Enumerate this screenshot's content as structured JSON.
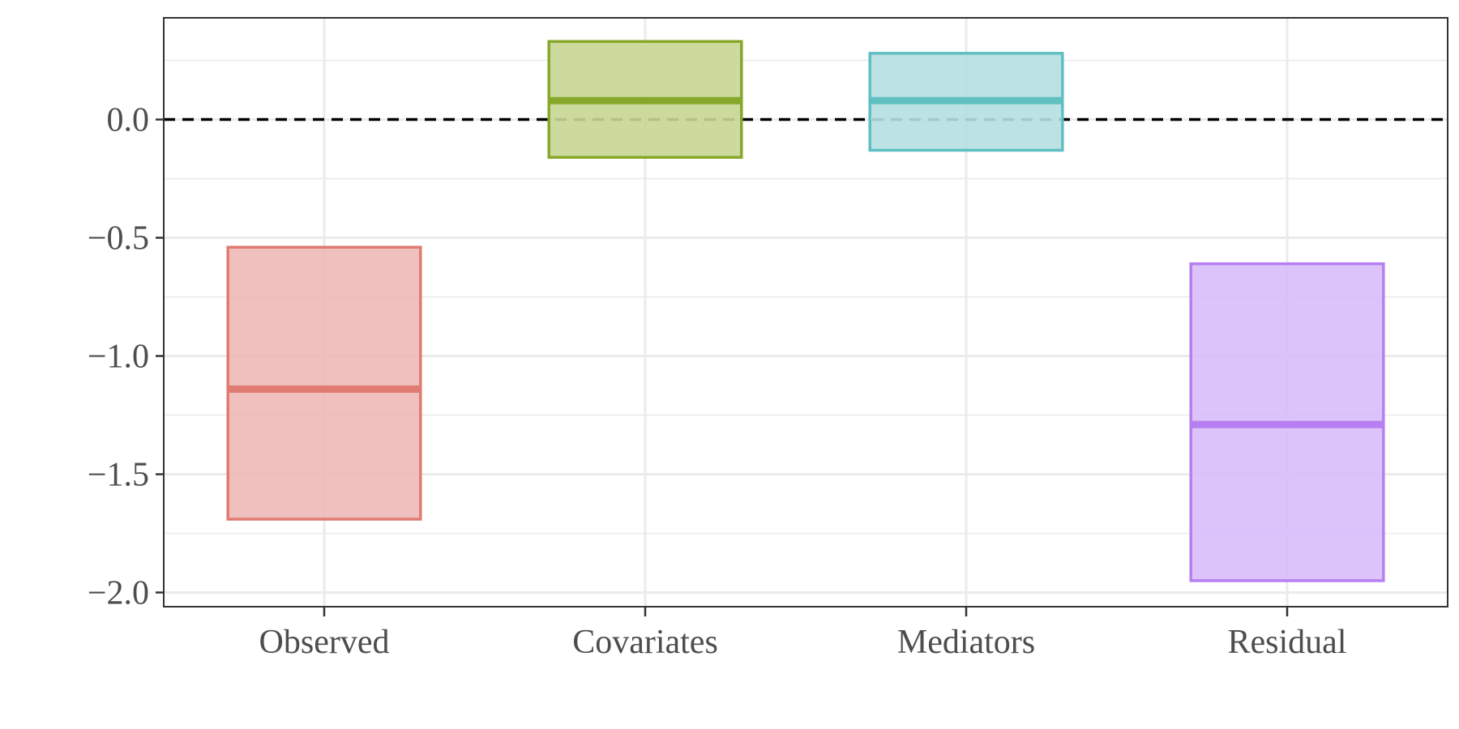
{
  "chart_data": {
    "type": "crossbar",
    "title": "",
    "xlabel": "",
    "ylabel": "",
    "ylim": [
      -2.06,
      0.43
    ],
    "y_ticks": [
      0.0,
      -0.5,
      -1.0,
      -1.5,
      -2.0
    ],
    "y_tick_labels": [
      "0.0",
      "−0.5",
      "−1.0",
      "−1.5",
      "−2.0"
    ],
    "reference_line": {
      "y": 0,
      "style": "dashed",
      "color": "#000000"
    },
    "grid": true,
    "legend": "none",
    "categories": [
      "Observed",
      "Covariates",
      "Mediators",
      "Residual"
    ],
    "bars": [
      {
        "category": "Observed",
        "estimate": -1.14,
        "lower": -1.69,
        "upper": -0.54,
        "color": "#e07b73",
        "fill": "#edb9b6"
      },
      {
        "category": "Covariates",
        "estimate": 0.08,
        "lower": -0.16,
        "upper": 0.33,
        "color": "#86a82a",
        "fill": "#c6d692"
      },
      {
        "category": "Mediators",
        "estimate": 0.08,
        "lower": -0.13,
        "upper": 0.28,
        "color": "#5fbfc1",
        "fill": "#b6dfe1"
      },
      {
        "category": "Residual",
        "estimate": -1.29,
        "lower": -1.95,
        "upper": -0.61,
        "color": "#b67ff2",
        "fill": "#d8bcfa"
      }
    ]
  }
}
